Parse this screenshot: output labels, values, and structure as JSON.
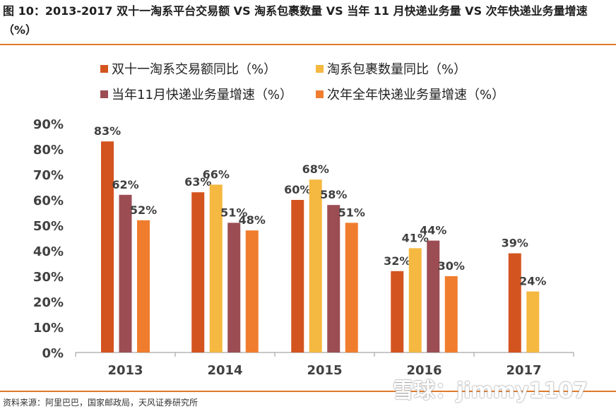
{
  "figure": {
    "title": "图 10：2013-2017 双十一淘系平台交易额 VS 淘系包裹数量 VS 当年 11 月快递业务量 VS 次年快递业务量增速（%）",
    "source": "资料来源：阿里巴巴，国家邮政局，天风证券研究所",
    "watermark": "雪球：jimmy1107"
  },
  "colors": {
    "s1": "#D4541F",
    "s2": "#F5B840",
    "s3": "#9C4D53",
    "s4": "#F07D2E",
    "rule": "#E07A2A",
    "axis_text": "#404040",
    "label_text": "#404040"
  },
  "chart_data": {
    "type": "bar",
    "categories": [
      "2013",
      "2014",
      "2015",
      "2016",
      "2017"
    ],
    "ylim": [
      0,
      90
    ],
    "yticks": [
      "0%",
      "10%",
      "20%",
      "30%",
      "40%",
      "50%",
      "60%",
      "70%",
      "80%",
      "90%"
    ],
    "grid": false,
    "legend_position": "top",
    "series": [
      {
        "name": "双十一淘系交易额同比（%）",
        "values": [
          83,
          63,
          60,
          32,
          39
        ],
        "labels": [
          "83%",
          "63%",
          "60%",
          "32%",
          "39%"
        ]
      },
      {
        "name": "淘系包裹数量同比（%）",
        "values": [
          null,
          66,
          68,
          41,
          24
        ],
        "labels": [
          "",
          "66%",
          "68%",
          "41%",
          "24%"
        ]
      },
      {
        "name": "当年11月快递业务量增速（%）",
        "values": [
          62,
          51,
          58,
          44,
          null
        ],
        "labels": [
          "62%",
          "51%",
          "58%",
          "44%",
          ""
        ]
      },
      {
        "name": "次年全年快递业务量增速（%）",
        "values": [
          52,
          48,
          51,
          30,
          null
        ],
        "labels": [
          "52%",
          "48%",
          "51%",
          "30%",
          ""
        ]
      }
    ]
  }
}
